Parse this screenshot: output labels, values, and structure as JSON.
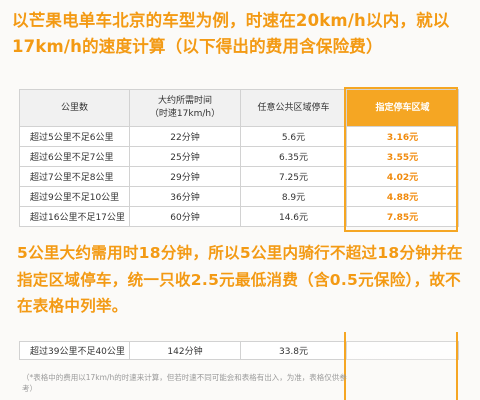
{
  "header": {
    "title": "以芒果电单车北京的车型为例，时速在20km/h以内，就以17km/h的速度计算（以下得出的费用含保险费）"
  },
  "main_table": {
    "headers": [
      "公里数",
      "大约所需时间\n（时速17km/h）",
      "任意公共区域停车",
      "指定停车区域"
    ],
    "rows": [
      [
        "超过5公里不足6公里",
        "22分钟",
        "5.6元",
        "3.16元"
      ],
      [
        "超过6公里不足7公里",
        "25分钟",
        "6.35元",
        "3.55元"
      ],
      [
        "超过7公里不足8公里",
        "29分钟",
        "7.25元",
        "4.02元"
      ],
      [
        "超过9公里不足10公里",
        "36分钟",
        "8.9元",
        "4.88元"
      ],
      [
        "超过16公里不足17公里",
        "60分钟",
        "14.6元",
        "7.85元"
      ]
    ]
  },
  "explanation": {
    "text": "5公里大约需用时18分钟，所以5公里内骑行不超过18分钟并在指定区域停车，统一只收2.5元最低消费（含0.5元保险），故不在表格中列举。"
  },
  "extra_table": {
    "row": [
      "超过39公里不足40公里",
      "142分钟",
      "33.8元",
      ""
    ]
  },
  "footnote": {
    "text": "（*表格中的费用以17km/h的时速来计算，但若时速不同可能会和表格有出入，为准，表格仅供参考）"
  },
  "colors": {
    "accent": "#f39a14",
    "highlight_border": "#f5a623"
  }
}
